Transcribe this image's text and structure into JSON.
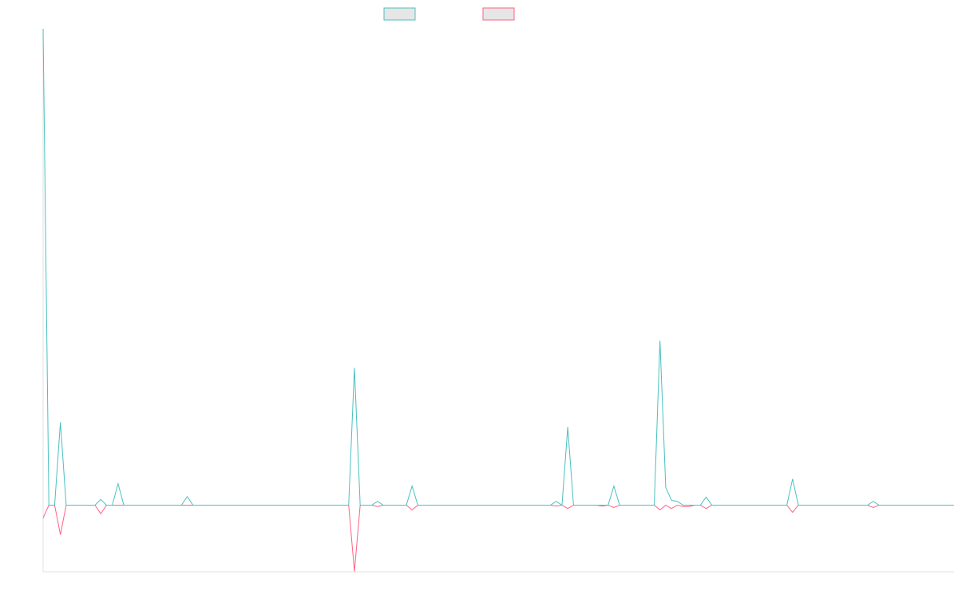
{
  "chart_data": {
    "type": "line",
    "categories": [
      null,
      null,
      null,
      null,
      null,
      null,
      null,
      null,
      null,
      null,
      null,
      null,
      null,
      null,
      null,
      null,
      null,
      null,
      null,
      null,
      null,
      null,
      null,
      null,
      null,
      null,
      null,
      null,
      null,
      null,
      null,
      null,
      null,
      null,
      null,
      null,
      null,
      null,
      null,
      null,
      null,
      null,
      null,
      null,
      null,
      null,
      null,
      null,
      null,
      null,
      null,
      null,
      null,
      null,
      null,
      null,
      null,
      null,
      null,
      null,
      null,
      null,
      null,
      null,
      null,
      null,
      null,
      null,
      null,
      null,
      null,
      null,
      null,
      null,
      null,
      null,
      null,
      null,
      null,
      null,
      null,
      null,
      null,
      null,
      null,
      null,
      null,
      null,
      null,
      null,
      null,
      null,
      null,
      null,
      null,
      null,
      null,
      null,
      null,
      null,
      null,
      null,
      null,
      null,
      null,
      null,
      null,
      null,
      null,
      null,
      null,
      null,
      null,
      null,
      null,
      null,
      null,
      null,
      null,
      null,
      null,
      null,
      null,
      null,
      null,
      null,
      null,
      null,
      null,
      null,
      null,
      null,
      null,
      null,
      null,
      null,
      null,
      null,
      null,
      null,
      null,
      null,
      null,
      null,
      null,
      null,
      null,
      null,
      null,
      null,
      null,
      null,
      null,
      null,
      null,
      null,
      null,
      null,
      null
    ],
    "series": [
      {
        "color": "#4bc0c0",
        "values": [
          100,
          0,
          0,
          17.4,
          0,
          0,
          0,
          0,
          0,
          0,
          1.2,
          0,
          0,
          4.5,
          0,
          0,
          0,
          0,
          0,
          0,
          0,
          0,
          0,
          0,
          0,
          1.8,
          0,
          0,
          0,
          0,
          0,
          0,
          0,
          0,
          0,
          0,
          0,
          0,
          0,
          0,
          0,
          0,
          0,
          0,
          0,
          0,
          0,
          0,
          0,
          0,
          0,
          0,
          0,
          0,
          28.8,
          0,
          0,
          0,
          0.8,
          0,
          0,
          0,
          0,
          0,
          4,
          0,
          0,
          0,
          0,
          0,
          0,
          0,
          0,
          0,
          0,
          0,
          0,
          0,
          0,
          0,
          0,
          0,
          0,
          0,
          0,
          0,
          0,
          0,
          0,
          0.8,
          0,
          16.4,
          0,
          0,
          0,
          0,
          0,
          0,
          0,
          4,
          0,
          0,
          0,
          0,
          0,
          0,
          0,
          34.5,
          3.7,
          1,
          0.8,
          0,
          0,
          0,
          0,
          1.7,
          0,
          0,
          0,
          0,
          0,
          0,
          0,
          0,
          0,
          0,
          0,
          0,
          0,
          0,
          5.5,
          0,
          0,
          0,
          0,
          0,
          0,
          0,
          0,
          0,
          0,
          0,
          0,
          0,
          0.8,
          0,
          0,
          0,
          0,
          0,
          0,
          0,
          0,
          0,
          0,
          0,
          0,
          0,
          0
        ]
      },
      {
        "color": "#ff6384",
        "values": [
          -2.7,
          0,
          0,
          -6.2,
          0,
          0,
          0,
          0,
          0,
          0,
          -1.8,
          0,
          0,
          0,
          0,
          0,
          0,
          0,
          0,
          0,
          0,
          0,
          0,
          0,
          0,
          0,
          0,
          0,
          0,
          0,
          0,
          0,
          0,
          0,
          0,
          0,
          0,
          0,
          0,
          0,
          0,
          0,
          0,
          0,
          0,
          0,
          0,
          0,
          0,
          0,
          0,
          0,
          0,
          0,
          -13.9,
          0,
          0,
          0,
          -0.3,
          0,
          0,
          0,
          0,
          0,
          -1,
          0,
          0,
          0,
          0,
          0,
          0,
          0,
          0,
          0,
          0,
          0,
          0,
          0,
          0,
          0,
          0,
          0,
          0,
          0,
          0,
          0,
          0,
          0,
          0,
          -0.2,
          0,
          -0.7,
          0,
          0,
          0,
          0,
          0,
          -0.2,
          0,
          -0.5,
          0,
          0,
          0,
          0,
          0,
          0,
          0,
          -1,
          0,
          -0.7,
          0,
          -0.3,
          -0.3,
          0,
          0,
          -0.7,
          0,
          0,
          0,
          0,
          0,
          0,
          0,
          0,
          0,
          0,
          0,
          0,
          0,
          0,
          -1.5,
          0,
          0,
          0,
          0,
          0,
          0,
          0,
          0,
          0,
          0,
          0,
          0,
          0,
          -0.5,
          0,
          0,
          0,
          0,
          0,
          0,
          0,
          0,
          0,
          0,
          0,
          0,
          0,
          0
        ]
      }
    ],
    "ylim": [
      -14,
      100
    ],
    "grid": false
  }
}
